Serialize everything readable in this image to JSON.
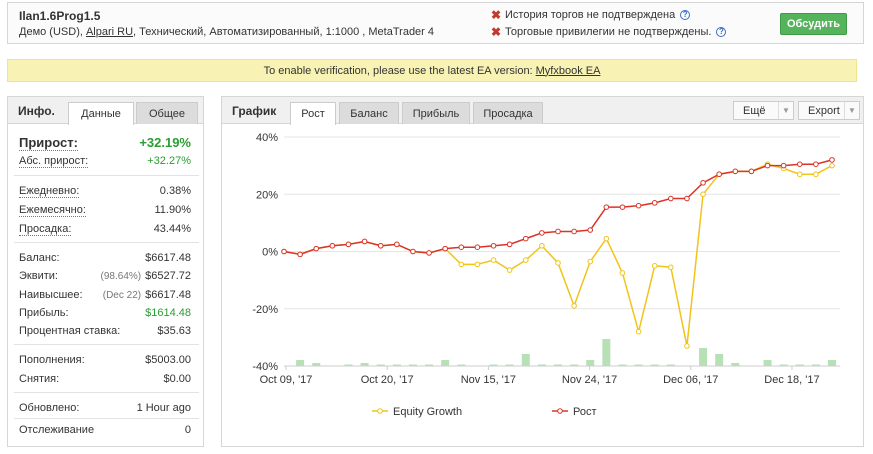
{
  "header": {
    "system_name": "Ilan1.6Prog1.5",
    "account_prefix": "Демо (USD), ",
    "broker": "Alpari RU",
    "account_suffix": ", Технический, Автоматизированный, 1:1000 , MetaTrader 4",
    "warning_history": "История торгов не подтверждена",
    "warning_privileges": "Торговые привилегии не подтверждены.",
    "discuss_label": "Обсудить",
    "colors": {
      "discuss": "#55b35b",
      "warning": "#c0392b"
    }
  },
  "banner": {
    "text": "To enable verification, please use the latest EA version:",
    "link": "Myfxbook EA"
  },
  "info": {
    "title": "Инфо.",
    "tabs": [
      "Данные",
      "Общее"
    ],
    "active_tab": "Данные",
    "gain_label": "Прирост:",
    "gain_value": "+32.19%",
    "abs_gain_label": "Абс. прирост:",
    "abs_gain_value": "+32.27%",
    "daily_label": "Ежедневно:",
    "daily_value": "0.38%",
    "monthly_label": "Ежемесячно:",
    "monthly_value": "11.90%",
    "drawdown_label": "Просадка:",
    "drawdown_value": "43.44%",
    "balance_label": "Баланс:",
    "balance_value": "$6617.48",
    "equity_label": "Эквити:",
    "equity_pct": "(98.64%)",
    "equity_value": "$6527.72",
    "highest_label": "Наивысшее:",
    "highest_date": "(Dec 22)",
    "highest_value": "$6617.48",
    "profit_label": "Прибыль:",
    "profit_value": "$1614.48",
    "interest_label": "Процентная ставка:",
    "interest_value": "$35.63",
    "deposits_label": "Пополнения:",
    "deposits_value": "$5003.00",
    "withdrawals_label": "Снятия:",
    "withdrawals_value": "$0.00",
    "updated_label": "Обновлено:",
    "updated_value": "1 Hour ago",
    "tracking_label": "Отслеживание",
    "tracking_value": "0"
  },
  "chart_panel": {
    "title": "График",
    "tabs": [
      "Рост",
      "Баланс",
      "Прибыль",
      "Просадка"
    ],
    "active_tab": "Рост",
    "more_label": "Ещё",
    "export_label": "Export"
  },
  "chart_data": {
    "type": "line",
    "yticks": [
      "40%",
      "20%",
      "0%",
      "-20%",
      "-40%"
    ],
    "ylim": [
      -40,
      40
    ],
    "xticks": [
      "Oct 09, '17",
      "Oct 20, '17",
      "Nov 15, '17",
      "Nov 24, '17",
      "Dec 06, '17",
      "Dec 18, '17"
    ],
    "grid": true,
    "legend_position": "bottom",
    "colors": {
      "equity": "#f0c419",
      "growth": "#d9342b",
      "bars": "#b7e0b7"
    },
    "series": [
      {
        "name": "Equity Growth",
        "values": [
          0,
          -1,
          1,
          2,
          2.5,
          3.5,
          2,
          2.5,
          0,
          -0.5,
          1,
          -4.5,
          -4.5,
          -3,
          -6.5,
          -3,
          2,
          -4,
          -19,
          -3.5,
          4.5,
          -7.5,
          -28,
          -5,
          -5.5,
          -33,
          20,
          27,
          28,
          28,
          30.5,
          29,
          27,
          27,
          30
        ]
      },
      {
        "name": "Рост",
        "values": [
          0,
          -1,
          1,
          2,
          2.5,
          3.5,
          2,
          2.5,
          0,
          -0.5,
          1,
          1.5,
          1.5,
          2,
          2.5,
          4.5,
          6.5,
          7,
          7,
          7.5,
          15.5,
          15.5,
          16,
          17,
          18.5,
          18.5,
          24,
          27,
          28,
          28,
          30,
          30,
          30.5,
          30.5,
          32
        ]
      }
    ],
    "bars": [
      0,
      2,
      1,
      0,
      0.5,
      1,
      0.5,
      0.5,
      0.5,
      0.5,
      2,
      0.5,
      0,
      0.5,
      0.5,
      4,
      0.5,
      0.5,
      0.5,
      2,
      9,
      0.5,
      0.5,
      0.5,
      0.5,
      0,
      6,
      4,
      1,
      0,
      2,
      0.5,
      0.5,
      0.5,
      2
    ]
  }
}
